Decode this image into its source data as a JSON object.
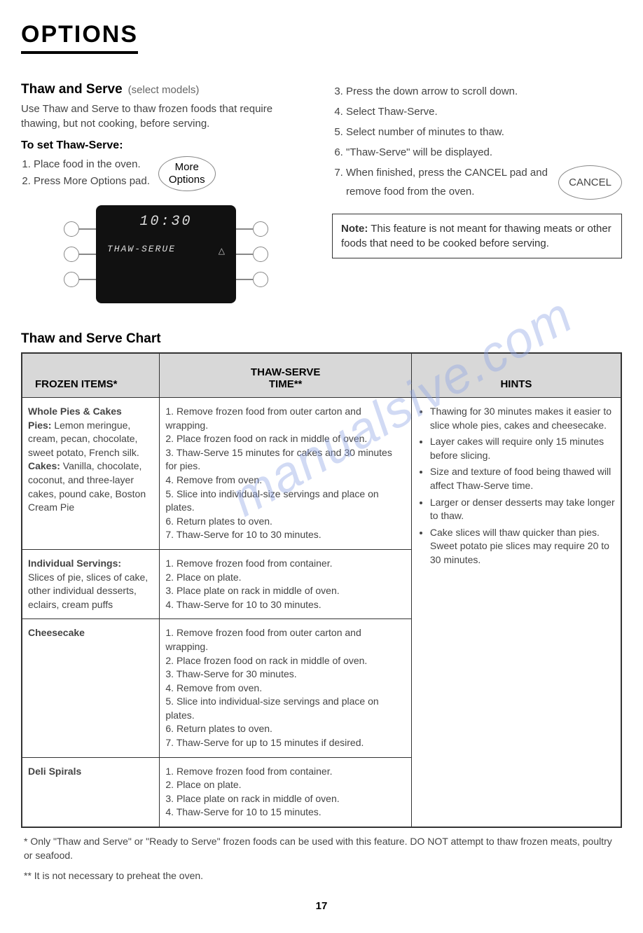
{
  "title": "OPTIONS",
  "watermark": "manualsive.com",
  "left": {
    "heading": "Thaw and Serve",
    "subtitle": "(select models)",
    "intro": "Use Thaw and Serve to thaw frozen foods that require thawing, but not cooking, before serving.",
    "subHeading": "To set Thaw-Serve:",
    "steps": [
      "Place food in the oven.",
      "Press More Options pad."
    ],
    "pillLine1": "More",
    "pillLine2": "Options",
    "display": {
      "time": "10:30",
      "label": "THAW-SERUE",
      "triangle": "△"
    }
  },
  "right": {
    "stepsStart": 3,
    "steps": [
      "Press the down arrow to scroll down.",
      "Select Thaw-Serve.",
      "Select number of minutes to thaw.",
      "\"Thaw-Serve\" will be displayed.",
      "When finished, press the CANCEL pad and remove food from the oven."
    ],
    "cancelLabel": "CANCEL",
    "noteLabel": "Note:",
    "noteText": "This feature is not meant for thawing meats or other foods that need to be cooked before serving."
  },
  "chart": {
    "heading": "Thaw and Serve Chart",
    "columns": [
      "FROZEN ITEMS*",
      "THAW-SERVE\nTIME**",
      "HINTS"
    ],
    "rows": [
      {
        "itemTitle": "Whole Pies & Cakes",
        "itemBody": "<b>Pies:</b> Lemon meringue, cream, pecan, chocolate, sweet potato, French silk. <b>Cakes:</b> Vanilla, chocolate, coconut, and three-layer cakes, pound cake, Boston Cream Pie",
        "time": "1. Remove frozen food from outer carton and wrapping.\n2. Place frozen food on rack in middle of oven.\n3. Thaw-Serve 15 minutes for cakes and 30 minutes for pies.\n4. Remove from oven.\n5. Slice into individual-size servings and place on plates.\n6. Return plates to oven.\n7. Thaw-Serve for 10 to 30 minutes."
      },
      {
        "itemTitle": "Individual Servings:",
        "itemBody": "Slices of pie, slices of cake, other individual desserts, eclairs, cream puffs",
        "time": "1. Remove frozen food from container.\n2. Place on plate.\n3. Place plate on rack in middle of oven.\n4. Thaw-Serve for 10 to 30 minutes."
      },
      {
        "itemTitle": "Cheesecake",
        "itemBody": "",
        "time": "1. Remove frozen food from outer carton and wrapping.\n2. Place frozen food on rack in middle of oven.\n3. Thaw-Serve for 30 minutes.\n4. Remove from oven.\n5. Slice into individual-size servings and place on plates.\n6. Return plates to oven.\n7. Thaw-Serve for up to 15 minutes if desired."
      },
      {
        "itemTitle": "Deli Spirals",
        "itemBody": "",
        "time": "1. Remove frozen food from container.\n2. Place on plate.\n3. Place plate on rack in middle of oven.\n4. Thaw-Serve for 10 to 15 minutes."
      }
    ],
    "hints": [
      "Thawing for 30 minutes makes it easier to slice whole pies, cakes and cheesecake.",
      "Layer cakes will require only 15 minutes before slicing.",
      "Size and texture of food being thawed will affect Thaw-Serve time.",
      "Larger or denser desserts may take longer to thaw.",
      "Cake slices will thaw quicker than pies. Sweet potato pie slices may require 20 to 30 minutes."
    ]
  },
  "footnote1": "* Only \"Thaw and Serve\" or \"Ready to Serve\" frozen foods can be used with this feature. DO NOT attempt to thaw frozen meats, poultry or seafood.",
  "footnote2": "** It is not necessary to preheat the oven.",
  "pageNumber": "17"
}
